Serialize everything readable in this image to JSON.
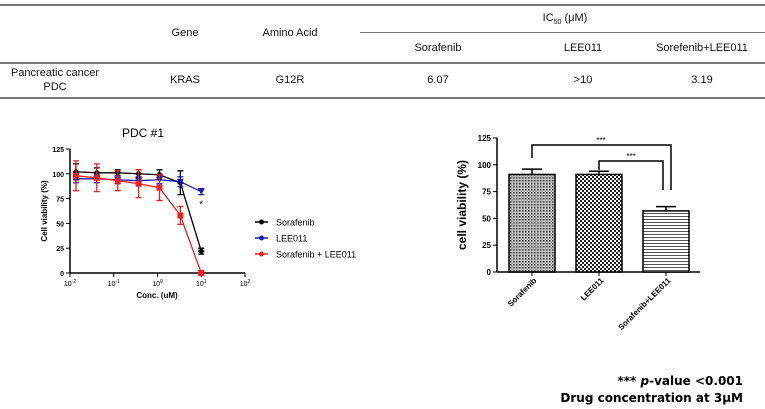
{
  "table": {
    "headers": {
      "gene": "Gene",
      "amino_acid": "Amino Acid",
      "ic50": "IC50 (μM)",
      "ic50_main": "IC",
      "ic50_sub": "50",
      "ic50_unit": " (μM)",
      "sorafenib": "Sorafenib",
      "lee011": "LEE011",
      "combo": "Sorefenib+LEE011"
    },
    "row": {
      "label_line1": "Pancreatic cancer",
      "label_line2": "PDC",
      "gene": "KRAS",
      "amino_acid": "G12R",
      "sorafenib": "6.07",
      "lee011": ">10",
      "combo": "3.19"
    }
  },
  "chart_data": [
    {
      "type": "line",
      "title": "PDC #1",
      "xlabel": "Conc. (uM)",
      "ylabel": "Cell viability (%)",
      "xscale": "log",
      "xlim": [
        0.01,
        100
      ],
      "ylim": [
        0,
        125
      ],
      "xticks": [
        "10-2",
        "10-1",
        "100",
        "101",
        "102"
      ],
      "yticks": [
        0,
        25,
        50,
        75,
        100,
        125
      ],
      "x": [
        0.0137,
        0.041,
        0.123,
        0.37,
        1.11,
        3.33,
        10
      ],
      "legend": "right",
      "series": [
        {
          "name": "Sorafenib",
          "color": "#000000",
          "marker": "diamond",
          "values": [
            102,
            101,
            101,
            100,
            99,
            91,
            22
          ],
          "err": [
            8,
            5,
            3,
            4,
            5,
            12,
            3
          ]
        },
        {
          "name": "LEE011",
          "color": "#1a1ab0",
          "marker": "triangle-down",
          "values": [
            95,
            95,
            94,
            93,
            94,
            92,
            82
          ],
          "err": [
            4,
            4,
            4,
            4,
            4,
            5,
            3
          ]
        },
        {
          "name": "Sorafenib + LEE011",
          "color": "#e82020",
          "marker": "square",
          "values": [
            98,
            96,
            93,
            90,
            86,
            58,
            0
          ],
          "err": [
            15,
            14,
            10,
            14,
            13,
            9,
            1
          ]
        }
      ],
      "annotation": "*"
    },
    {
      "type": "bar",
      "ylabel": "cell viability (%)",
      "ylim": [
        0,
        125
      ],
      "yticks": [
        0,
        25,
        50,
        75,
        100,
        125
      ],
      "categories": [
        "Sorafenib",
        "LEE011",
        "Sorafenib+LEE011"
      ],
      "values": [
        91,
        91,
        57
      ],
      "err": [
        5,
        3,
        4
      ],
      "significance": [
        {
          "pair": [
            "Sorafenib",
            "Sorafenib+LEE011"
          ],
          "label": "***"
        },
        {
          "pair": [
            "LEE011",
            "Sorafenib+LEE011"
          ],
          "label": "***"
        }
      ]
    }
  ],
  "footnote": {
    "stars": "***",
    "pvalue_italic": "p",
    "pvalue_rest": "-value <0.001",
    "line2": "Drug concentration at 3μM"
  }
}
